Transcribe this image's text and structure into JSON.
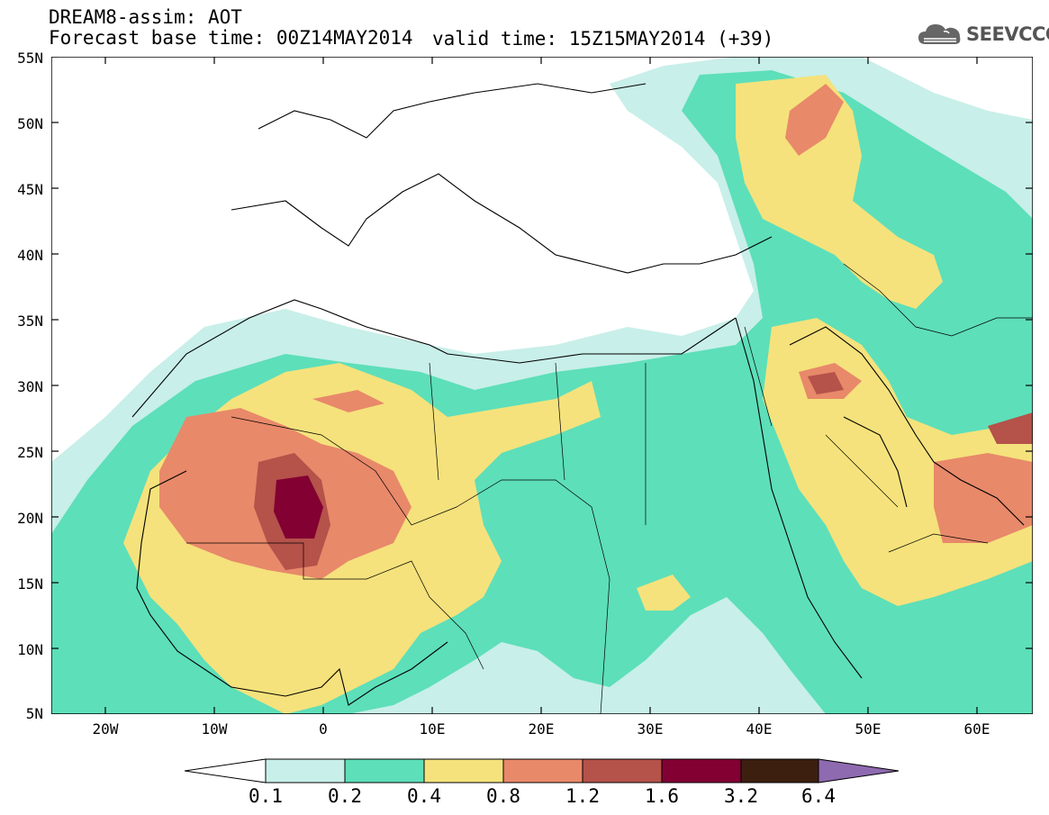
{
  "header": {
    "title": "DREAM8-assim: AOT",
    "base_time": "Forecast base time: 00Z14MAY2014",
    "valid_time": "valid time: 15Z15MAY2014 (+39)"
  },
  "logo": {
    "text": "SEEVCCC",
    "icon": "cloud-icon"
  },
  "map": {
    "projection": "lat-lon",
    "lon_range": [
      -25,
      65
    ],
    "lat_range": [
      5,
      55
    ],
    "y_ticks": [
      "55N",
      "50N",
      "45N",
      "40N",
      "35N",
      "30N",
      "25N",
      "20N",
      "15N",
      "10N",
      "5N"
    ],
    "x_ticks": [
      "20W",
      "10W",
      "0",
      "10E",
      "20E",
      "30E",
      "40E",
      "50E",
      "60E"
    ]
  },
  "colorbar": {
    "labels": [
      "0.1",
      "0.2",
      "0.4",
      "0.8",
      "1.2",
      "1.6",
      "3.2",
      "6.4"
    ],
    "colors": [
      "#ffffff",
      "#c8efe9",
      "#5ddfb9",
      "#f5e27c",
      "#e8896a",
      "#b5524a",
      "#820032",
      "#3d1f10",
      "#8e6ab0"
    ]
  }
}
